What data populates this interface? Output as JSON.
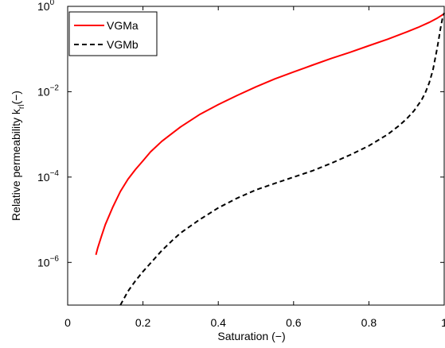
{
  "chart_data": {
    "type": "line",
    "title": "",
    "xlabel": "Saturation (−)",
    "ylabel_main": "Relative permeability k",
    "ylabel_sub": "rl",
    "ylabel_tail": "(−)",
    "xlim": [
      0,
      1
    ],
    "ylim": [
      1e-07,
      1
    ],
    "yscale": "log",
    "grid": false,
    "legend_position": "top-left",
    "x_ticks": [
      {
        "value": 0,
        "label": "0"
      },
      {
        "value": 0.2,
        "label": "0.2"
      },
      {
        "value": 0.4,
        "label": "0.4"
      },
      {
        "value": 0.6,
        "label": "0.6"
      },
      {
        "value": 0.8,
        "label": "0.8"
      },
      {
        "value": 1,
        "label": "1"
      }
    ],
    "y_ticks": [
      {
        "value": 1e-06,
        "base": "10",
        "exp": "−6"
      },
      {
        "value": 0.0001,
        "base": "10",
        "exp": "−4"
      },
      {
        "value": 0.01,
        "base": "10",
        "exp": "−2"
      },
      {
        "value": 1,
        "base": "10",
        "exp": "0"
      }
    ],
    "series": [
      {
        "name": "VGMa",
        "color": "#ff0000",
        "style": "solid",
        "x": [
          0.075,
          0.08,
          0.09,
          0.1,
          0.12,
          0.14,
          0.16,
          0.18,
          0.2,
          0.22,
          0.25,
          0.28,
          0.3,
          0.35,
          0.4,
          0.45,
          0.5,
          0.55,
          0.6,
          0.65,
          0.7,
          0.75,
          0.8,
          0.85,
          0.9,
          0.93,
          0.96,
          0.98,
          1.0
        ],
        "y": [
          1.5e-06,
          2.2e-06,
          4.2e-06,
          7.7e-06,
          2e-05,
          4.6e-05,
          8.9e-05,
          0.00015,
          0.00024,
          0.00039,
          0.00069,
          0.0011,
          0.0015,
          0.0029,
          0.005,
          0.0082,
          0.013,
          0.02,
          0.029,
          0.042,
          0.06,
          0.084,
          0.12,
          0.17,
          0.25,
          0.32,
          0.42,
          0.52,
          0.67
        ]
      },
      {
        "name": "VGMb",
        "color": "#000000",
        "style": "dashed",
        "x": [
          0.14,
          0.16,
          0.18,
          0.2,
          0.22,
          0.25,
          0.28,
          0.3,
          0.35,
          0.4,
          0.45,
          0.5,
          0.55,
          0.6,
          0.65,
          0.7,
          0.75,
          0.8,
          0.85,
          0.88,
          0.9,
          0.92,
          0.94,
          0.95,
          0.96,
          0.97,
          0.98,
          0.985,
          0.99,
          0.995,
          1.0
        ],
        "y": [
          1e-07,
          2.1e-07,
          3.7e-07,
          6.1e-07,
          9.6e-07,
          1.9e-06,
          3.4e-06,
          4.9e-06,
          1e-05,
          1.9e-05,
          3.2e-05,
          5e-05,
          7.1e-05,
          0.0001,
          0.00014,
          0.00021,
          0.00033,
          0.00054,
          0.001,
          0.0016,
          0.0023,
          0.0036,
          0.0064,
          0.0095,
          0.016,
          0.032,
          0.09,
          0.16,
          0.3,
          0.5,
          0.7
        ]
      }
    ]
  }
}
